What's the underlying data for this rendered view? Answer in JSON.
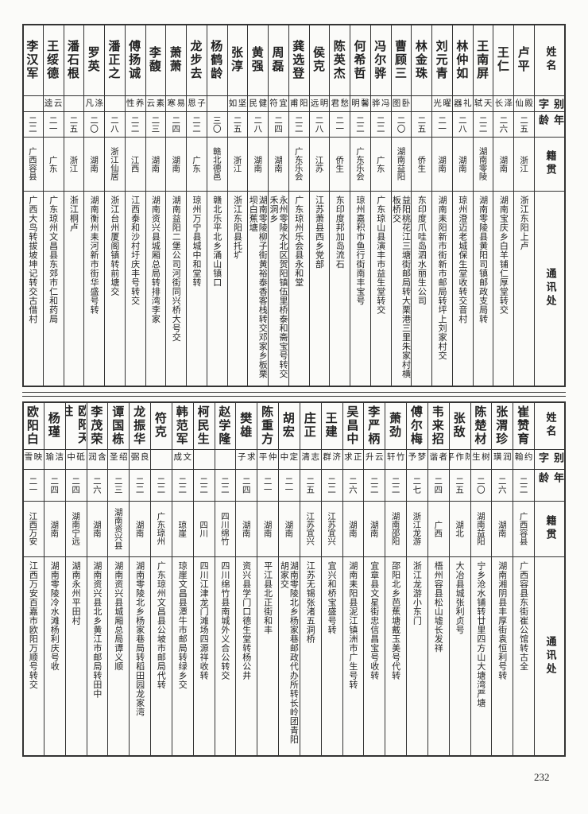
{
  "page_number": "232",
  "header": {
    "name": "姓名",
    "alias": "别字",
    "age": "年龄",
    "origin": "籍贯",
    "address": "通讯处"
  },
  "tables": [
    {
      "rows": [
        {
          "name": "卢平",
          "alias": "殿仙",
          "age": "二五",
          "origin": "浙江",
          "address": "浙江东阳上卢"
        },
        {
          "name": "王仁",
          "alias": "泽长",
          "age": "二六",
          "origin": "湖南",
          "address": "湖南宝庆乡白羊铺仁厚堂转交"
        },
        {
          "name": "王南屏",
          "alias": "天轼",
          "age": "二二",
          "origin": "湖南零陵",
          "address": "湖南零陵县黄阳司镇邮政支局转"
        },
        {
          "name": "林仲如",
          "alias": "礼器",
          "age": "二八",
          "origin": "湖南",
          "address": "琼州澄迈老城保生堂收转交音村"
        },
        {
          "name": "刘元青",
          "alias": "曜光",
          "age": "二一",
          "origin": "湖南",
          "address": "湖南耒阳新市街新市邮局转坪上刘家村交"
        },
        {
          "name": "林金珠",
          "age": "二五",
          "origin": "侨生",
          "address": "东印度爪哇岛泗水丽生公司"
        },
        {
          "name": "曹顾三",
          "alias": "卧图",
          "age": "二〇",
          "origin": "湖南益阳",
          "address": "益阳桃花江三塘街邮局转大栗港三里朱家村横板桥交"
        },
        {
          "name": "冯尔骅",
          "alias": "冯骅",
          "age": "二二",
          "origin": "广东",
          "address": "广东琼山县演丰市益生堂转交"
        },
        {
          "name": "何希哲",
          "alias": "馨明",
          "age": "二二",
          "origin": "广东乐会",
          "address": "琼州嘉积市鱼行街南丰宝号"
        },
        {
          "name": "陈英杰",
          "alias": "愁君",
          "age": "二一",
          "origin": "侨生",
          "address": "东印度邦加岛流石"
        },
        {
          "name": "侯克",
          "alias": "明远",
          "age": "二八",
          "origin": "江苏",
          "address": "江苏萧县西乡党部"
        },
        {
          "name": "龚选登",
          "alias": "阳甫",
          "age": "二二",
          "origin": "广东乐会",
          "address": "广东琼州乐会县永和堂"
        },
        {
          "name": "周磊",
          "alias": "宜符",
          "age": "二四",
          "origin": "湖南",
          "address": "永州零陵水北区贺阳镇伍里桥泰和斋宝号转交禾洞乡"
        },
        {
          "name": "黄强",
          "alias": "健民",
          "age": "二八",
          "origin": "湖南",
          "address": "湖南零陵柳子街黄裕泰香客栈转交邓家乡板栗坝白蕉塘"
        },
        {
          "name": "张淳",
          "alias": "坚如",
          "age": "二五",
          "origin": "浙江",
          "address": "浙江东阳县托圹"
        },
        {
          "name": "杨鹤龄",
          "age": "三〇",
          "origin": "赣北德邑",
          "address": "赣北乐平北乡涌山镇口"
        },
        {
          "name": "龙步去",
          "alias": "子恩",
          "age": "二二",
          "origin": "广东",
          "address": "琼州万宁县城中和堂转"
        },
        {
          "name": "萧萧",
          "alias": "易寒",
          "age": "二四",
          "origin": "湖南",
          "address": "湖南益阳二堡公司河街同兴桥大号交"
        },
        {
          "name": "李馥",
          "alias": "素云",
          "age": "二三",
          "origin": "湖南",
          "address": "湖南资兴县城厢总局转排湾李家"
        },
        {
          "name": "傅扬诚",
          "alias": "养性",
          "age": "二二",
          "origin": "江西",
          "address": "江西泰和沙村圩庆丰号转交"
        },
        {
          "name": "潘正之",
          "age": "二八",
          "origin": "浙江仙居",
          "address": "浙江台州厦阁镇转前塘交"
        },
        {
          "name": "罗英",
          "alias": "涤凡",
          "age": "二〇",
          "origin": "湖南",
          "address": "湖南衡州耒河新市街华盛号转"
        },
        {
          "name": "潘石根",
          "age": "二五",
          "origin": "浙江",
          "address": "浙江桐卢"
        },
        {
          "name": "王绥德",
          "alias": "云逵",
          "age": "二一",
          "origin": "广东",
          "address": "广东琼州文昌县东郊市仁和药局"
        },
        {
          "name": "李汉军",
          "age": "二二",
          "origin": "广西容县",
          "address": "广西大鸟转拔坡坤记转交古借村"
        }
      ]
    },
    {
      "rows": [
        {
          "name": "崔赞育",
          "alias": "约翰",
          "age": "二二",
          "origin": "广西容县",
          "address": "广西容县东街崔公馆转古全"
        },
        {
          "name": "张渭珍",
          "alias": "润璜",
          "age": "二六",
          "origin": "湖南",
          "address": "湖南湘阴县丰厚街袁恒利号转"
        },
        {
          "name": "陈楚材",
          "alias": "树生",
          "age": "二〇",
          "origin": "湖南益阳",
          "address": "宁乡沧水铺转廿里四方山大塘湾严塘"
        },
        {
          "name": "张敌",
          "alias": "陈作平",
          "age": "二五",
          "origin": "湖北",
          "address": "大冶县城张利贞号"
        },
        {
          "name": "韦来招",
          "alias": "者谐",
          "age": "二四",
          "origin": "广西",
          "address": "梧州容县松山墟长发祥"
        },
        {
          "name": "傅尔梅",
          "alias": "梦予",
          "age": "二七",
          "origin": "浙江龙游",
          "address": "浙江龙游小东门"
        },
        {
          "name": "萧劲",
          "alias": "竹轩",
          "age": "二二",
          "origin": "湖南邵阳",
          "address": "邵阳北乡芭蕉塘戴玉美号代转"
        },
        {
          "name": "李严柄",
          "alias": "云升",
          "age": "二二",
          "origin": "湖南",
          "address": "宜章县文星街忠信昌宝号收转"
        },
        {
          "name": "吴昌中",
          "alias": "正求",
          "age": "二六",
          "origin": "湖南",
          "address": "湖南耒阳县泥江镇洲市广生号转"
        },
        {
          "name": "王建",
          "alias": "济群",
          "age": "二二",
          "origin": "江苏宜兴",
          "address": "宜兴和桥宝盛号转"
        },
        {
          "name": "庄正",
          "alias": "志清",
          "age": "二五",
          "origin": "江苏宜兴",
          "address": "江苏无锡张渚五洞桥"
        },
        {
          "name": "胡宏",
          "alias": "定中",
          "age": "二一",
          "origin": "湖南",
          "address": "湖南零陵北乡杨家巷邮政代办所转长岭团青阳胡家交"
        },
        {
          "name": "陈重方",
          "alias": "仲平",
          "age": "二一",
          "origin": "湖南",
          "address": "平江县北正街和丰"
        },
        {
          "name": "樊雄",
          "alias": "孝求子严",
          "age": "二四",
          "origin": "湖南",
          "address": "资兴县学门口德生堂转杨公井"
        },
        {
          "name": "赵学隆",
          "age": "二二",
          "origin": "四川绵竹",
          "address": "四川绵竹县南城外义合公转交"
        },
        {
          "name": "柯民生",
          "age": "二二",
          "origin": "四川",
          "address": "四川江津龙门滩场四源祥收转"
        },
        {
          "name": "韩范军",
          "alias": "文成",
          "age": "二二",
          "origin": "琼崖",
          "address": "琼崖文昌县潭牛市邮局转绿乡交"
        },
        {
          "name": "符克",
          "age": "二二",
          "origin": "广东琼州",
          "address": "广东琼州文昌县公坡市邮局代转"
        },
        {
          "name": "龙振华",
          "alias": "良弼",
          "age": "二二",
          "origin": "湖南",
          "address": "湖南零陵北乡杨家巷局转稻田园龙家湾"
        },
        {
          "name": "谭国栋",
          "alias": "绍圣",
          "age": "二三",
          "origin": "湖南资兴县",
          "address": "湖南资兴县城厢总局谭义顺"
        },
        {
          "name": "李茂荣",
          "alias": "含润",
          "age": "二六",
          "origin": "湖南",
          "address": "湖南资兴县北乡黄江市邮局转田中"
        },
        {
          "name": "欧阳天柱",
          "alias": "砥中",
          "age": "二四",
          "origin": "湖南宁远",
          "address": "湖南永州平田村"
        },
        {
          "name": "杨瑾",
          "alias": "洁瑜",
          "age": "二四",
          "origin": "湖南",
          "address": "湖南零陵冷水滩杨利庆号收"
        },
        {
          "name": "欧阳白",
          "alias": "映雪",
          "age": "二一",
          "origin": "江西万安",
          "address": "江西万安百嘉市欧阳万顺号转交"
        }
      ]
    }
  ]
}
